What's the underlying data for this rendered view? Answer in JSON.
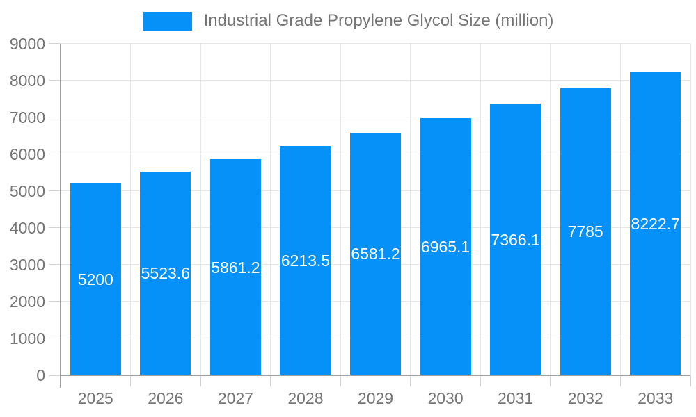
{
  "chart_data": {
    "type": "bar",
    "title": "Industrial Grade Propylene Glycol Size (million)",
    "categories": [
      "2025",
      "2026",
      "2027",
      "2028",
      "2029",
      "2030",
      "2031",
      "2032",
      "2033"
    ],
    "values": [
      5200,
      5523.6,
      5861.2,
      6213.5,
      6581.2,
      6965.1,
      7366.1,
      7785,
      8222.7
    ],
    "value_labels": [
      "5200",
      "5523.6",
      "5861.2",
      "6213.5",
      "6581.2",
      "6965.1",
      "7366.1",
      "7785",
      "8222.7"
    ],
    "xlabel": "",
    "ylabel": "",
    "ylim": [
      0,
      9000
    ],
    "ytick_step": 1000,
    "ytick_labels": [
      "0",
      "1000",
      "2000",
      "3000",
      "4000",
      "5000",
      "6000",
      "7000",
      "8000",
      "9000"
    ],
    "grid": true,
    "legend_position": "top",
    "value_label_position": "center-of-bar",
    "colors": {
      "bar": "#0591f8",
      "grid": "#e6e6e6",
      "axis": "#a0a0a0",
      "tick": "#d2d2d2",
      "text": "#757575",
      "value_label": "#ffffff",
      "background": "#ffffff"
    }
  }
}
